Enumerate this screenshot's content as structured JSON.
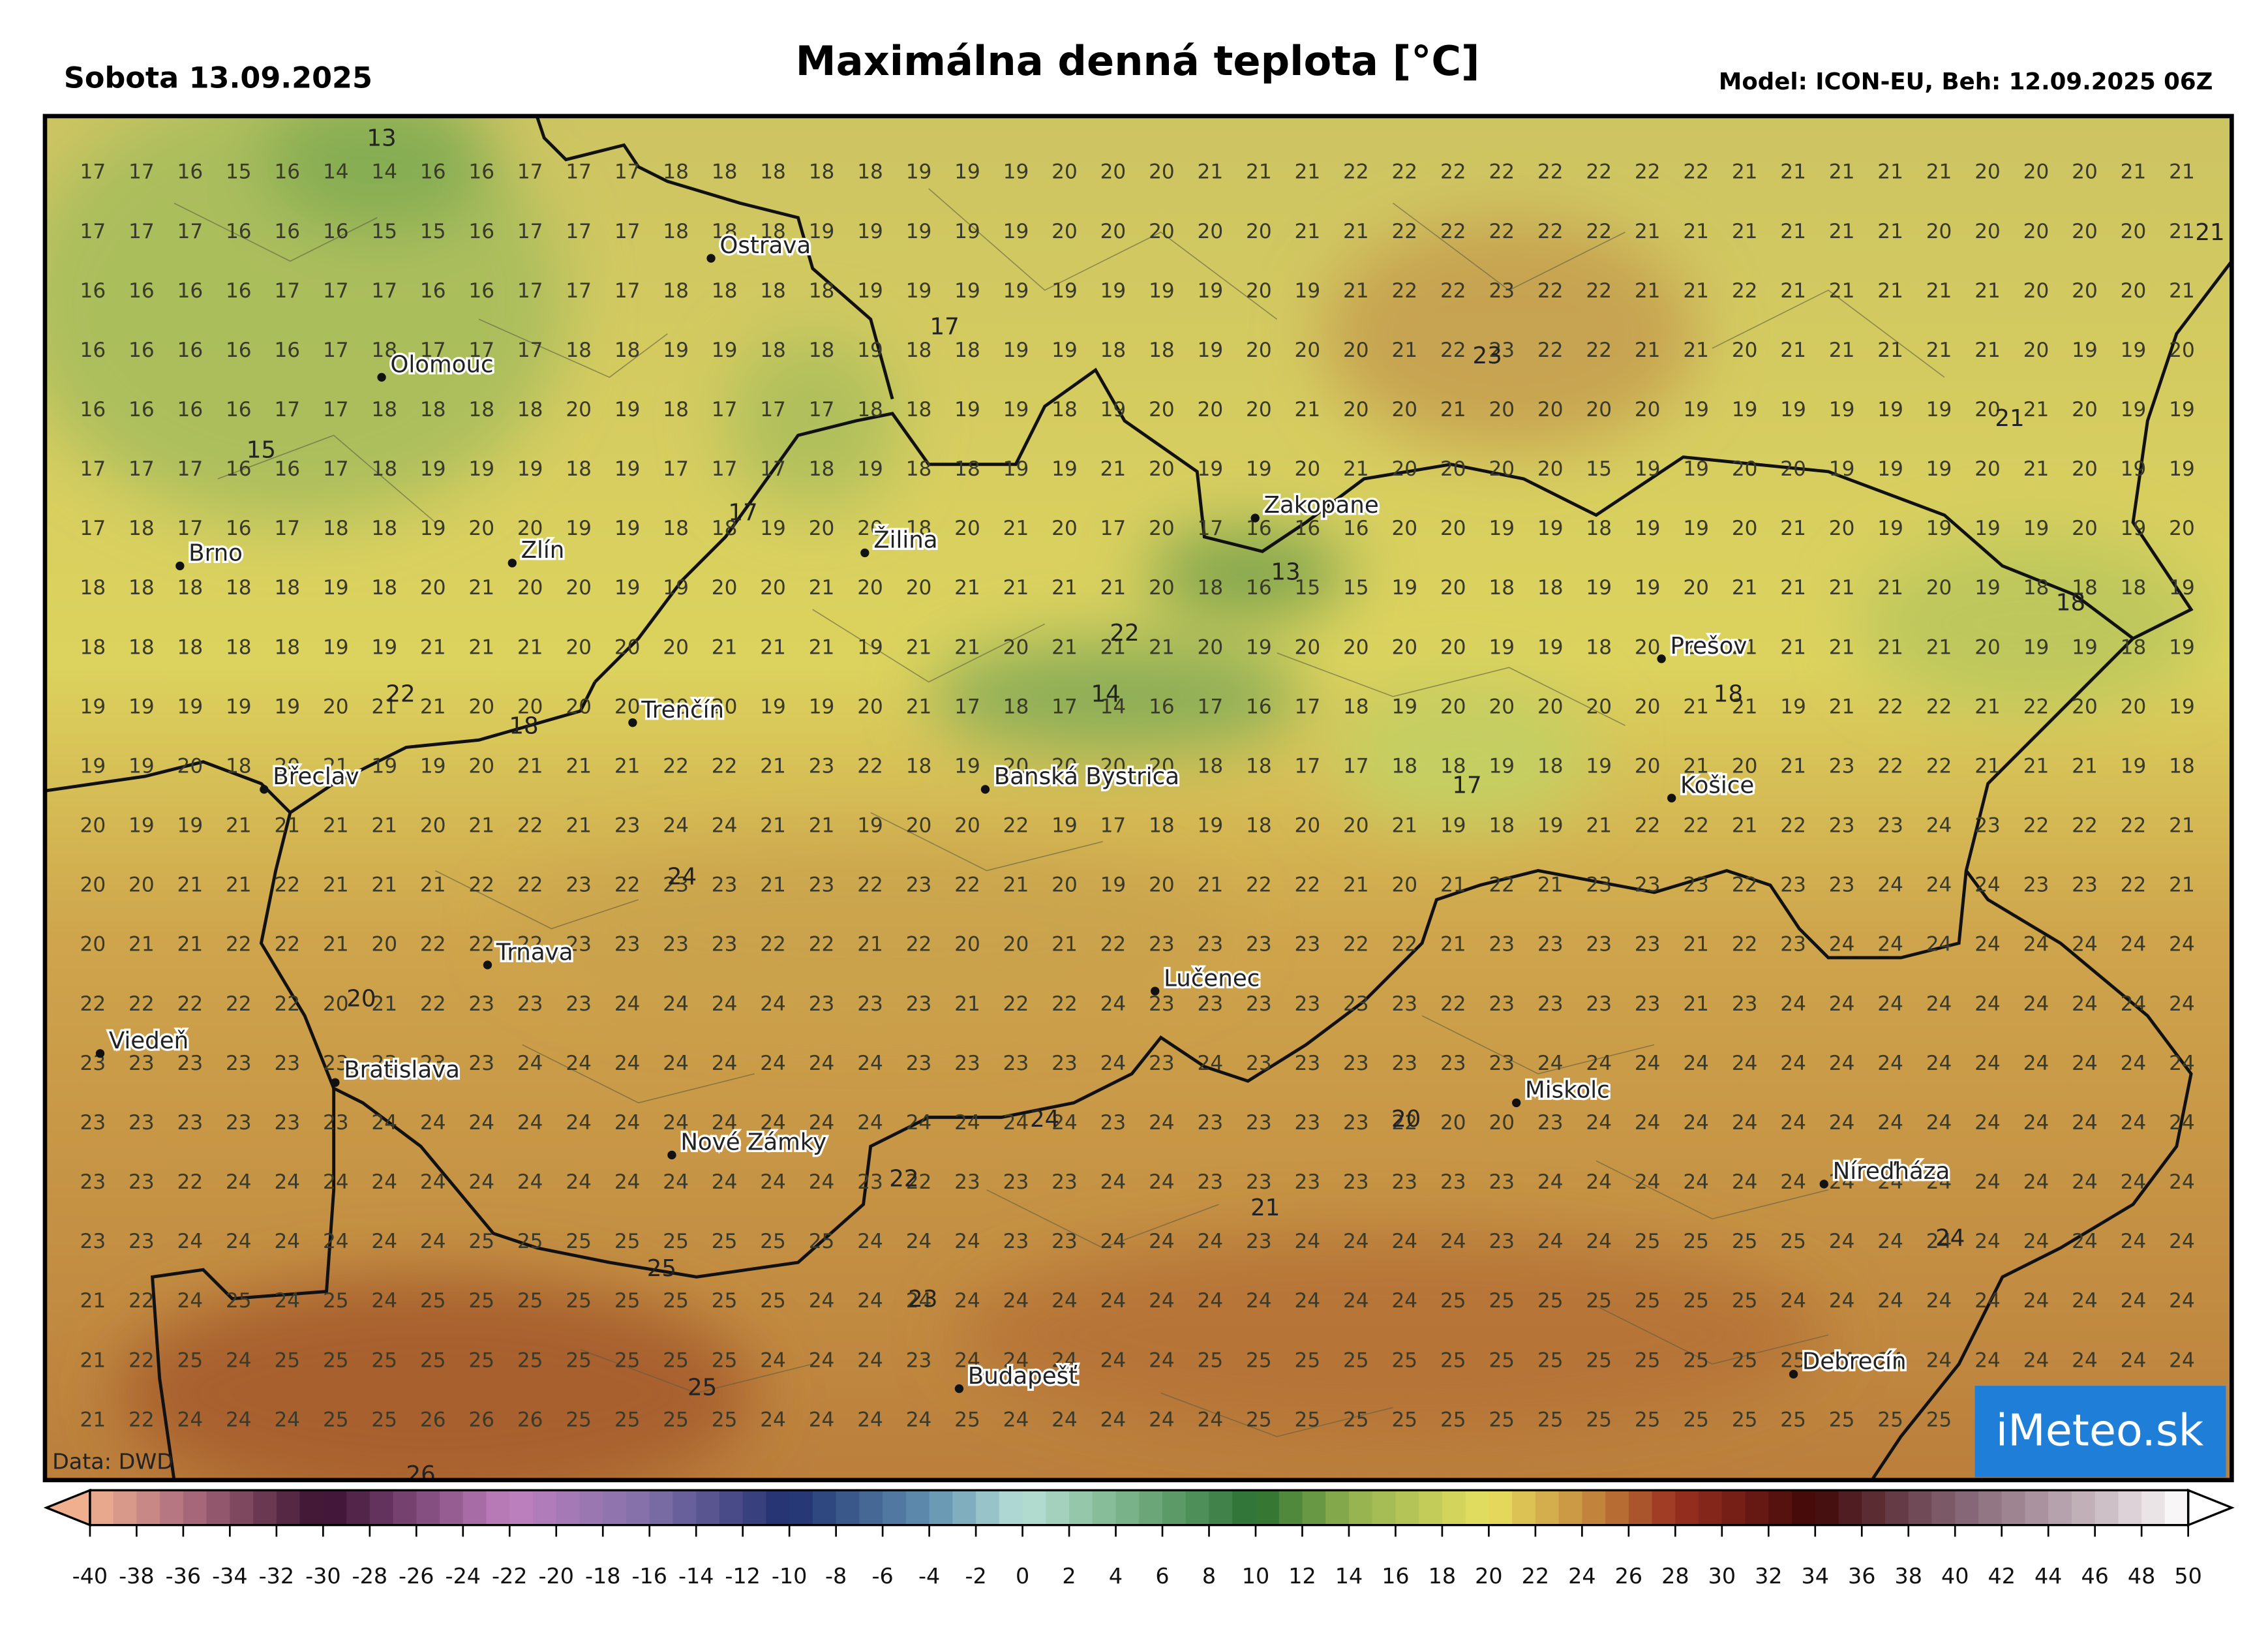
{
  "header": {
    "date": "Sobota 13.09.2025",
    "title": "Maximálna denná teplota [°C]",
    "model": "Model: ICON-EU, Beh: 12.09.2025 06Z"
  },
  "grid": {
    "rows": [
      [
        17,
        17,
        16,
        15,
        16,
        14,
        14,
        16,
        16,
        17,
        17,
        17,
        18,
        18,
        18,
        18,
        18,
        19,
        19,
        19,
        20,
        20,
        20,
        21,
        21,
        21,
        22,
        22,
        22,
        22,
        22,
        22,
        22,
        22,
        21,
        21,
        21,
        21,
        21,
        20,
        20,
        20,
        21,
        21
      ],
      [
        17,
        17,
        17,
        16,
        16,
        16,
        15,
        15,
        16,
        17,
        17,
        17,
        18,
        18,
        18,
        19,
        19,
        19,
        19,
        19,
        20,
        20,
        20,
        20,
        20,
        21,
        21,
        22,
        22,
        22,
        22,
        22,
        21,
        21,
        21,
        21,
        21,
        21,
        20,
        20,
        20,
        20,
        20,
        21
      ],
      [
        16,
        16,
        16,
        16,
        17,
        17,
        17,
        16,
        16,
        17,
        17,
        17,
        18,
        18,
        18,
        18,
        19,
        19,
        19,
        19,
        19,
        19,
        19,
        19,
        20,
        19,
        21,
        22,
        22,
        23,
        22,
        22,
        21,
        21,
        22,
        21,
        21,
        21,
        21,
        21,
        20,
        20,
        20,
        21
      ],
      [
        16,
        16,
        16,
        16,
        16,
        17,
        18,
        17,
        17,
        17,
        18,
        18,
        19,
        19,
        18,
        18,
        19,
        18,
        18,
        19,
        19,
        18,
        18,
        19,
        20,
        20,
        20,
        21,
        22,
        23,
        22,
        22,
        21,
        21,
        20,
        21,
        21,
        21,
        21,
        21,
        20,
        19,
        19,
        20
      ],
      [
        16,
        16,
        16,
        16,
        17,
        17,
        18,
        18,
        18,
        18,
        20,
        19,
        18,
        17,
        17,
        17,
        18,
        18,
        19,
        19,
        18,
        19,
        20,
        20,
        20,
        21,
        20,
        20,
        21,
        20,
        20,
        20,
        20,
        19,
        19,
        19,
        19,
        19,
        19,
        20,
        21,
        20,
        19,
        19
      ],
      [
        17,
        17,
        17,
        16,
        16,
        17,
        18,
        19,
        19,
        19,
        18,
        19,
        17,
        17,
        17,
        18,
        19,
        18,
        18,
        19,
        19,
        21,
        20,
        19,
        19,
        20,
        21,
        20,
        20,
        20,
        20,
        15,
        19,
        19,
        20,
        20,
        19,
        19,
        19,
        20,
        21,
        20,
        19,
        19
      ],
      [
        17,
        18,
        17,
        16,
        17,
        18,
        18,
        19,
        20,
        20,
        19,
        19,
        18,
        18,
        19,
        20,
        20,
        18,
        20,
        21,
        20,
        17,
        20,
        17,
        16,
        16,
        16,
        20,
        20,
        19,
        19,
        18,
        19,
        19,
        20,
        21,
        20,
        19,
        19,
        19,
        19,
        20,
        19,
        20
      ],
      [
        18,
        18,
        18,
        18,
        18,
        19,
        18,
        20,
        21,
        20,
        20,
        19,
        19,
        20,
        20,
        21,
        20,
        20,
        21,
        21,
        21,
        21,
        20,
        18,
        16,
        15,
        15,
        19,
        20,
        18,
        18,
        19,
        19,
        20,
        21,
        21,
        21,
        21,
        20,
        19,
        18,
        18,
        18,
        19
      ],
      [
        18,
        18,
        18,
        18,
        18,
        19,
        19,
        21,
        21,
        21,
        20,
        20,
        20,
        21,
        21,
        21,
        19,
        21,
        21,
        20,
        21,
        21,
        21,
        20,
        19,
        20,
        20,
        20,
        20,
        19,
        19,
        18,
        20,
        21,
        21,
        21,
        21,
        21,
        21,
        20,
        19,
        19,
        18,
        19
      ],
      [
        19,
        19,
        19,
        19,
        19,
        20,
        21,
        21,
        20,
        20,
        20,
        20,
        20,
        20,
        19,
        19,
        20,
        21,
        17,
        18,
        17,
        14,
        16,
        17,
        16,
        17,
        18,
        19,
        20,
        20,
        20,
        20,
        20,
        21,
        21,
        19,
        21,
        22,
        22,
        21,
        22,
        20,
        20,
        19
      ],
      [
        19,
        19,
        20,
        18,
        20,
        21,
        19,
        19,
        20,
        21,
        21,
        21,
        22,
        22,
        21,
        23,
        22,
        18,
        19,
        20,
        20,
        20,
        20,
        18,
        18,
        17,
        17,
        18,
        18,
        19,
        18,
        19,
        20,
        21,
        20,
        21,
        23,
        22,
        22,
        21,
        21,
        21,
        19,
        18
      ],
      [
        20,
        19,
        19,
        21,
        21,
        21,
        21,
        20,
        21,
        22,
        21,
        23,
        24,
        24,
        21,
        21,
        19,
        20,
        20,
        22,
        19,
        17,
        18,
        19,
        18,
        20,
        20,
        21,
        19,
        18,
        19,
        21,
        22,
        22,
        21,
        22,
        23,
        23,
        24,
        23,
        22,
        22,
        22,
        21
      ],
      [
        20,
        20,
        21,
        21,
        22,
        21,
        21,
        21,
        22,
        22,
        23,
        22,
        23,
        23,
        21,
        23,
        22,
        23,
        22,
        21,
        20,
        19,
        20,
        21,
        22,
        22,
        21,
        20,
        21,
        22,
        21,
        23,
        23,
        23,
        22,
        23,
        23,
        24,
        24,
        24,
        23,
        23,
        22,
        21
      ],
      [
        20,
        21,
        21,
        22,
        22,
        21,
        20,
        22,
        22,
        22,
        23,
        23,
        23,
        23,
        22,
        22,
        21,
        22,
        20,
        20,
        21,
        22,
        23,
        23,
        23,
        23,
        22,
        22,
        21,
        23,
        23,
        23,
        23,
        21,
        22,
        23,
        24,
        24,
        24,
        24,
        24,
        24,
        24,
        24
      ],
      [
        22,
        22,
        22,
        22,
        22,
        20,
        21,
        22,
        23,
        23,
        23,
        24,
        24,
        24,
        24,
        23,
        23,
        23,
        21,
        22,
        22,
        24,
        23,
        23,
        23,
        23,
        23,
        23,
        22,
        23,
        23,
        23,
        23,
        21,
        23,
        24,
        24,
        24,
        24,
        24,
        24,
        24,
        24,
        24
      ],
      [
        23,
        23,
        23,
        23,
        23,
        23,
        23,
        23,
        23,
        24,
        24,
        24,
        24,
        24,
        24,
        24,
        24,
        23,
        23,
        23,
        23,
        24,
        23,
        24,
        23,
        23,
        23,
        23,
        23,
        23,
        24,
        24,
        24,
        24,
        24,
        24,
        24,
        24,
        24,
        24,
        24,
        24,
        24,
        24
      ],
      [
        23,
        23,
        23,
        23,
        23,
        23,
        24,
        24,
        24,
        24,
        24,
        24,
        24,
        24,
        24,
        24,
        24,
        24,
        24,
        24,
        24,
        23,
        24,
        23,
        23,
        23,
        23,
        22,
        20,
        20,
        23,
        24,
        24,
        24,
        24,
        24,
        24,
        24,
        24,
        24,
        24,
        24,
        24,
        24
      ],
      [
        23,
        23,
        22,
        24,
        24,
        24,
        24,
        24,
        24,
        24,
        24,
        24,
        24,
        24,
        24,
        24,
        23,
        22,
        23,
        23,
        23,
        24,
        24,
        23,
        23,
        23,
        23,
        23,
        23,
        23,
        24,
        24,
        24,
        24,
        24,
        24,
        24,
        24,
        24,
        24,
        24,
        24,
        24,
        24
      ],
      [
        23,
        23,
        24,
        24,
        24,
        24,
        24,
        24,
        25,
        25,
        25,
        25,
        25,
        25,
        25,
        25,
        24,
        24,
        24,
        23,
        23,
        24,
        24,
        24,
        23,
        24,
        24,
        24,
        24,
        23,
        24,
        24,
        25,
        25,
        25,
        25,
        24,
        24,
        24,
        24,
        24,
        24,
        24,
        24
      ],
      [
        21,
        22,
        24,
        25,
        24,
        25,
        24,
        25,
        25,
        25,
        25,
        25,
        25,
        25,
        25,
        24,
        24,
        24,
        24,
        24,
        24,
        24,
        24,
        24,
        24,
        24,
        24,
        24,
        25,
        25,
        25,
        25,
        25,
        25,
        25,
        24,
        24,
        24,
        24,
        24,
        24,
        24,
        24,
        24
      ],
      [
        21,
        22,
        25,
        24,
        25,
        25,
        25,
        25,
        25,
        25,
        25,
        25,
        25,
        25,
        24,
        24,
        24,
        23,
        24,
        24,
        24,
        24,
        24,
        25,
        25,
        25,
        25,
        25,
        25,
        25,
        25,
        25,
        25,
        25,
        25,
        25,
        24,
        24,
        24,
        24,
        24,
        24,
        24,
        24
      ],
      [
        21,
        22,
        24,
        24,
        24,
        25,
        25,
        26,
        26,
        26,
        25,
        25,
        25,
        25,
        24,
        24,
        24,
        24,
        25,
        24,
        24,
        24,
        24,
        24,
        25,
        25,
        25,
        25,
        25,
        25,
        25,
        25,
        25,
        25,
        25,
        25,
        25,
        25,
        25
      ]
    ]
  },
  "extremes": [
    13,
    17,
    23,
    21,
    21,
    15,
    17,
    13,
    18,
    22,
    14,
    18,
    22,
    18,
    17,
    24,
    20,
    24,
    20,
    22,
    21,
    24,
    25,
    23,
    25,
    26
  ],
  "cities": [
    "Ostrava",
    "Olomouc",
    "Brno",
    "Zlín",
    "Žilina",
    "Zakopane",
    "Prešov",
    "Trenčín",
    "Břeclav",
    "Banská Bystrica",
    "Košice",
    "Trnava",
    "Lučenec",
    "Viedeň",
    "Bratislava",
    "Miskolc",
    "Nové Zámky",
    "Níreďháza",
    "Budapešť",
    "Debrecín"
  ],
  "colorbar": {
    "ticks": [
      -40,
      -38,
      -36,
      -34,
      -32,
      -30,
      -28,
      -26,
      -24,
      -22,
      -20,
      -18,
      -16,
      -14,
      -12,
      -10,
      -8,
      -6,
      -4,
      -2,
      0,
      2,
      4,
      6,
      8,
      10,
      12,
      14,
      16,
      18,
      20,
      22,
      24,
      26,
      28,
      30,
      32,
      34,
      36,
      38,
      40,
      42,
      44,
      46,
      48,
      50
    ]
  },
  "footer": {
    "source": "Data: DWD",
    "logo": "iMeteo.sk"
  }
}
